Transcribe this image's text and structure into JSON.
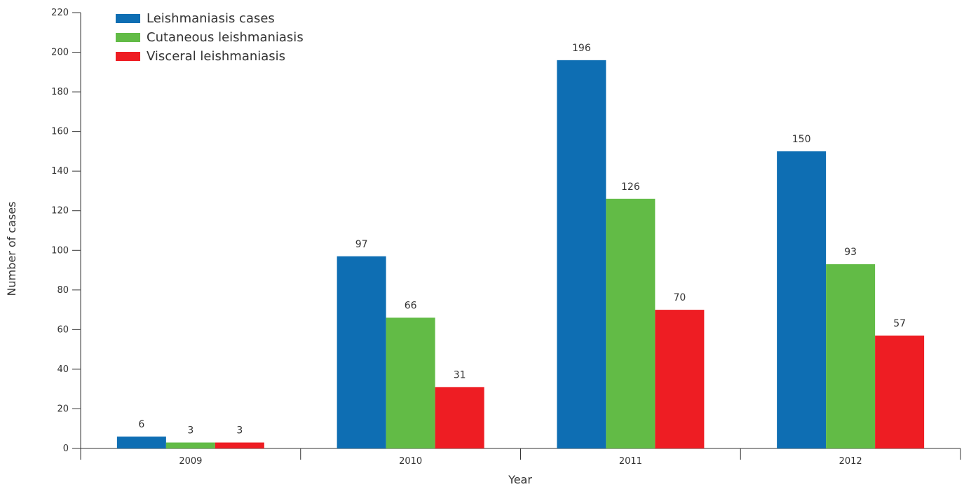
{
  "chart_data": {
    "type": "bar",
    "title": "",
    "xlabel": "Year",
    "ylabel": "Number of cases",
    "categories": [
      "2009",
      "2010",
      "2011",
      "2012"
    ],
    "ylim": [
      0,
      220
    ],
    "yticks": [
      0,
      20,
      40,
      60,
      80,
      100,
      120,
      140,
      160,
      180,
      200,
      220
    ],
    "grid": false,
    "legend_position": "top-left",
    "series": [
      {
        "name": "Leishmaniasis cases",
        "color": "#0e6eb3",
        "values": [
          6,
          97,
          196,
          150
        ]
      },
      {
        "name": "Cutaneous leishmaniasis",
        "color": "#62bb46",
        "values": [
          3,
          66,
          126,
          93
        ]
      },
      {
        "name": "Visceral leishmaniasis",
        "color": "#ee1d23",
        "values": [
          3,
          31,
          70,
          57
        ]
      }
    ]
  }
}
